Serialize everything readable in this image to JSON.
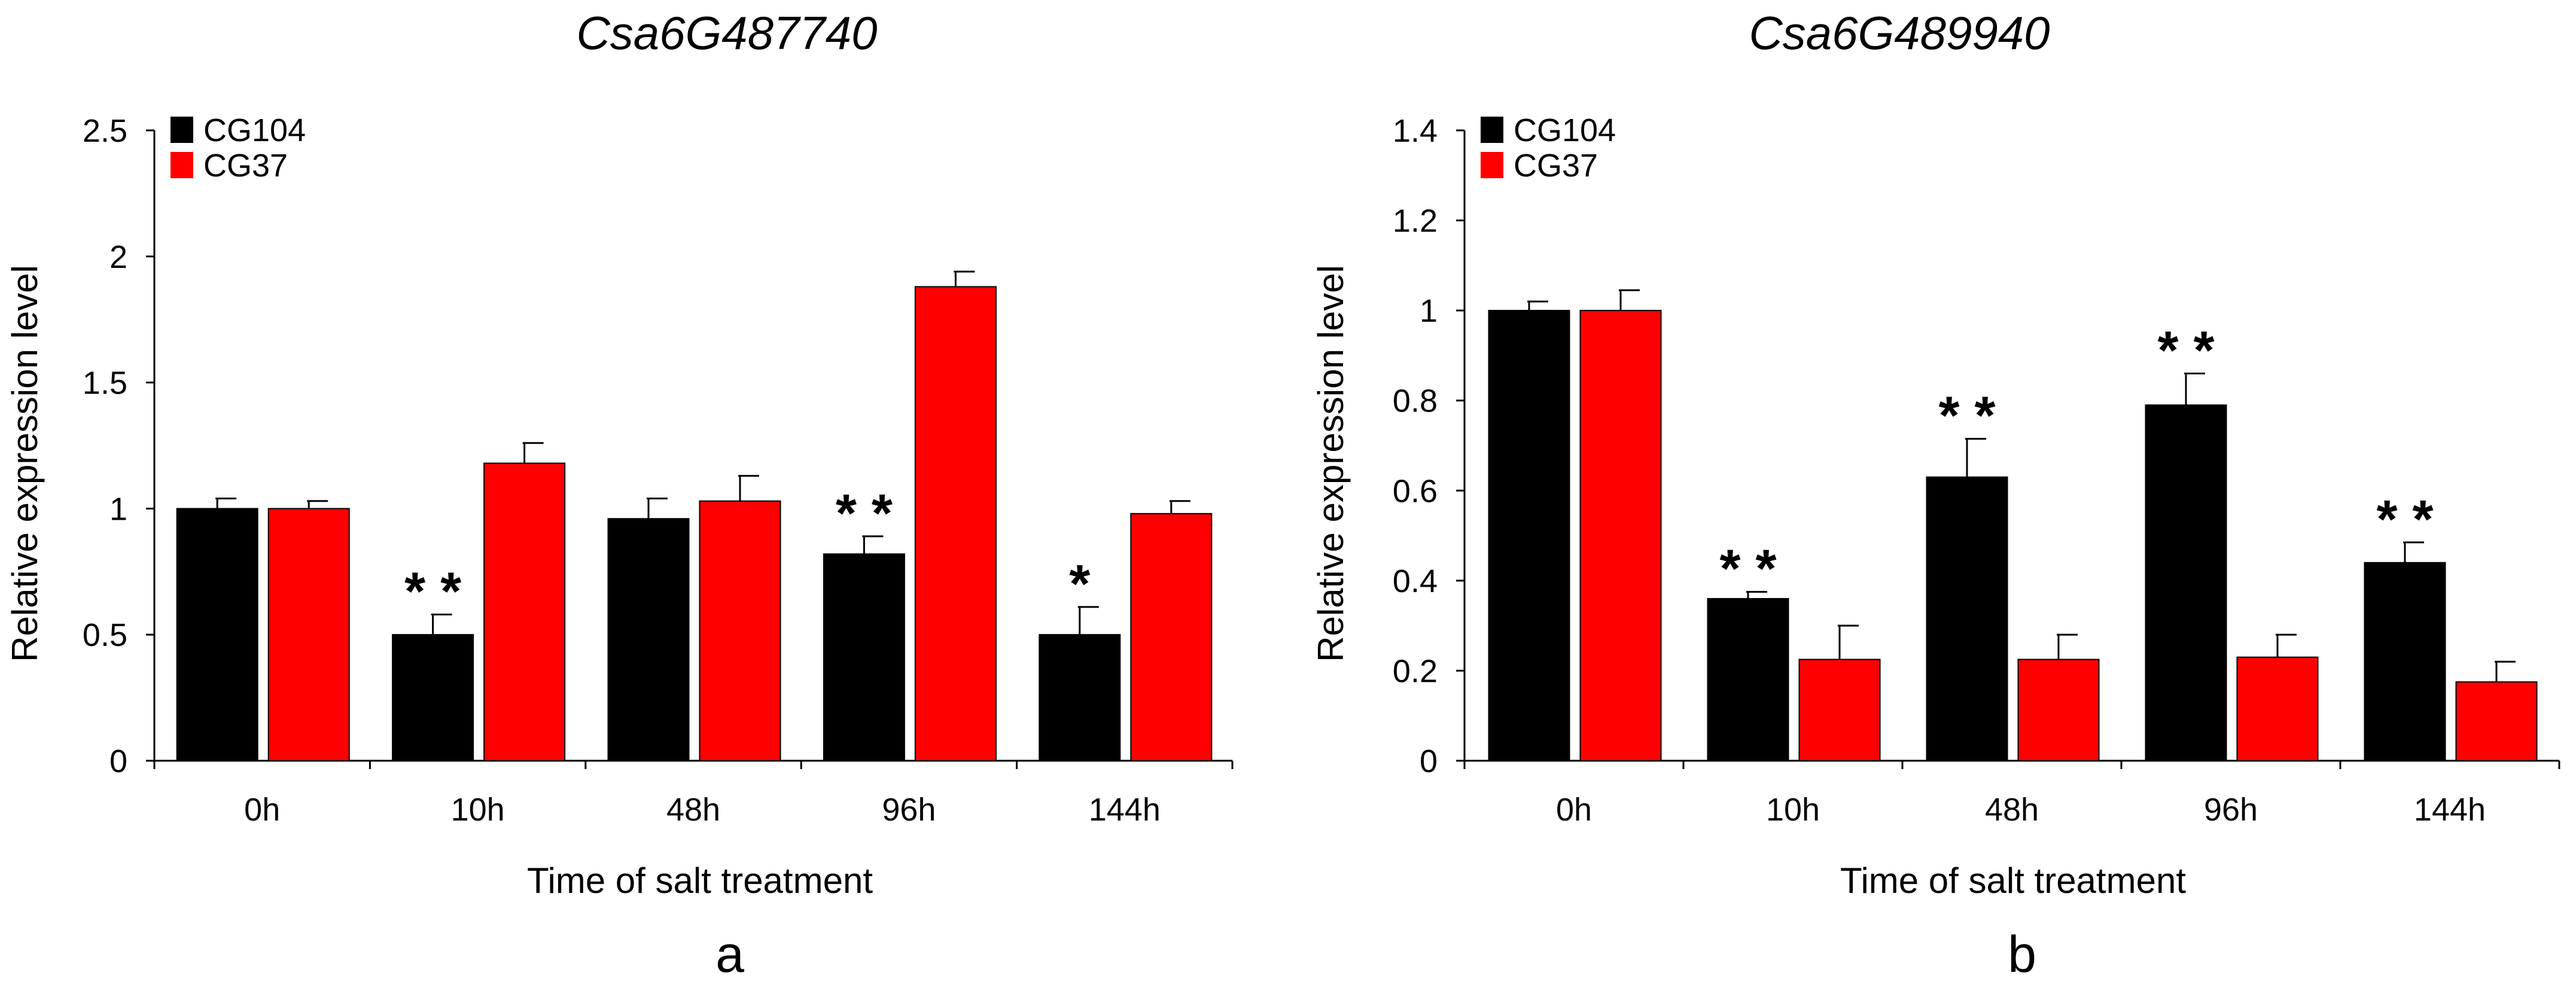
{
  "chart_data": [
    {
      "type": "bar",
      "title": "Csa6G487740",
      "panel_label": "a",
      "xlabel": "Time of salt treatment",
      "ylabel": "Relative expression level",
      "categories": [
        "0h",
        "10h",
        "48h",
        "96h",
        "144h"
      ],
      "ylim": [
        0,
        2.5
      ],
      "yticks": [
        0,
        0.5,
        1,
        1.5,
        2,
        2.5
      ],
      "ytick_labels": [
        "0",
        "0.5",
        "1",
        "1.5",
        "2",
        "2.5"
      ],
      "legend_position": "top-left",
      "series": [
        {
          "name": "CG104",
          "color": "#000000",
          "values": [
            1.0,
            0.5,
            0.96,
            0.82,
            0.5
          ],
          "errors": [
            0.04,
            0.08,
            0.08,
            0.07,
            0.11
          ]
        },
        {
          "name": "CG37",
          "color": "#ff0000",
          "values": [
            1.0,
            1.18,
            1.03,
            1.88,
            0.98
          ],
          "errors": [
            0.03,
            0.08,
            0.1,
            0.06,
            0.05
          ]
        }
      ],
      "annotations": [
        {
          "category": "10h",
          "series": "CG104",
          "text": "* *"
        },
        {
          "category": "96h",
          "series": "CG104",
          "text": "* *"
        },
        {
          "category": "144h",
          "series": "CG104",
          "text": "*"
        }
      ]
    },
    {
      "type": "bar",
      "title": "Csa6G489940",
      "panel_label": "b",
      "xlabel": "Time of salt treatment",
      "ylabel": "Relative expression level",
      "categories": [
        "0h",
        "10h",
        "48h",
        "96h",
        "144h"
      ],
      "ylim": [
        0,
        1.4
      ],
      "yticks": [
        0,
        0.2,
        0.4,
        0.6,
        0.8,
        1,
        1.2,
        1.4
      ],
      "ytick_labels": [
        "0",
        "0.2",
        "0.4",
        "0.6",
        "0.8",
        "1",
        "1.2",
        "1.4"
      ],
      "legend_position": "top-left",
      "series": [
        {
          "name": "CG104",
          "color": "#000000",
          "values": [
            1.0,
            0.36,
            0.63,
            0.79,
            0.44
          ],
          "errors": [
            0.02,
            0.015,
            0.085,
            0.07,
            0.045
          ]
        },
        {
          "name": "CG37",
          "color": "#ff0000",
          "values": [
            1.0,
            0.225,
            0.225,
            0.23,
            0.175
          ],
          "errors": [
            0.045,
            0.075,
            0.055,
            0.05,
            0.045
          ]
        }
      ],
      "annotations": [
        {
          "category": "10h",
          "series": "CG104",
          "text": "* *"
        },
        {
          "category": "48h",
          "series": "CG104",
          "text": "* *"
        },
        {
          "category": "96h",
          "series": "CG104",
          "text": "* *"
        },
        {
          "category": "144h",
          "series": "CG104",
          "text": "* *"
        }
      ]
    }
  ]
}
